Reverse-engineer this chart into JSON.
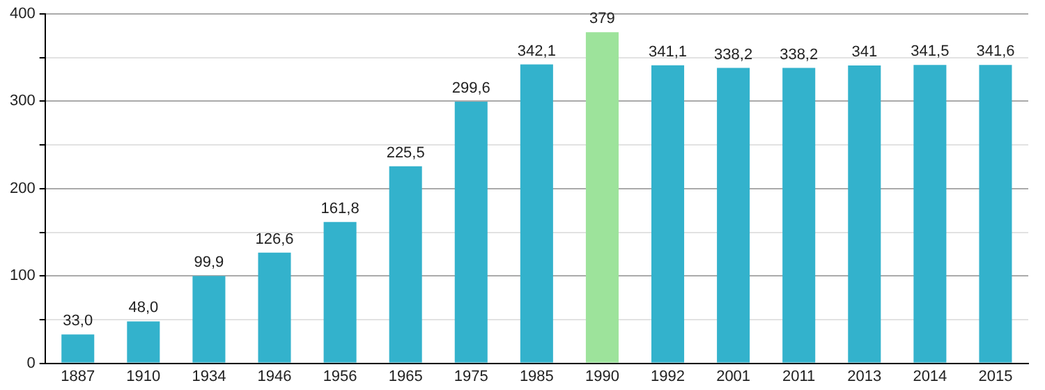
{
  "chart_data": {
    "type": "bar",
    "categories": [
      "1887",
      "1910",
      "1934",
      "1946",
      "1956",
      "1965",
      "1975",
      "1985",
      "1990",
      "1992",
      "2001",
      "2011",
      "2013",
      "2014",
      "2015"
    ],
    "values": [
      33.0,
      48.0,
      99.9,
      126.6,
      161.8,
      225.5,
      299.6,
      342.1,
      379,
      341.1,
      338.2,
      338.2,
      341,
      341.5,
      341.6
    ],
    "colors": [
      "#33b2cc",
      "#33b2cc",
      "#33b2cc",
      "#33b2cc",
      "#33b2cc",
      "#33b2cc",
      "#33b2cc",
      "#33b2cc",
      "#9de39b",
      "#33b2cc",
      "#33b2cc",
      "#33b2cc",
      "#33b2cc",
      "#33b2cc",
      "#33b2cc"
    ],
    "value_labels": [
      "33,0",
      "48,0",
      "99,9",
      "126,6",
      "161,8",
      "225,5",
      "299,6",
      "342,1",
      "379",
      "341,1",
      "338,2",
      "338,2",
      "341",
      "341,5",
      "341,6"
    ],
    "ylim": [
      0,
      400
    ],
    "yticks": [
      0,
      {
        "value": 50,
        "label": null
      },
      100,
      {
        "value": 150,
        "label": null
      },
      200,
      {
        "value": 250,
        "label": null
      },
      300,
      {
        "value": 350,
        "label": null
      },
      400
    ],
    "grid": "y"
  }
}
